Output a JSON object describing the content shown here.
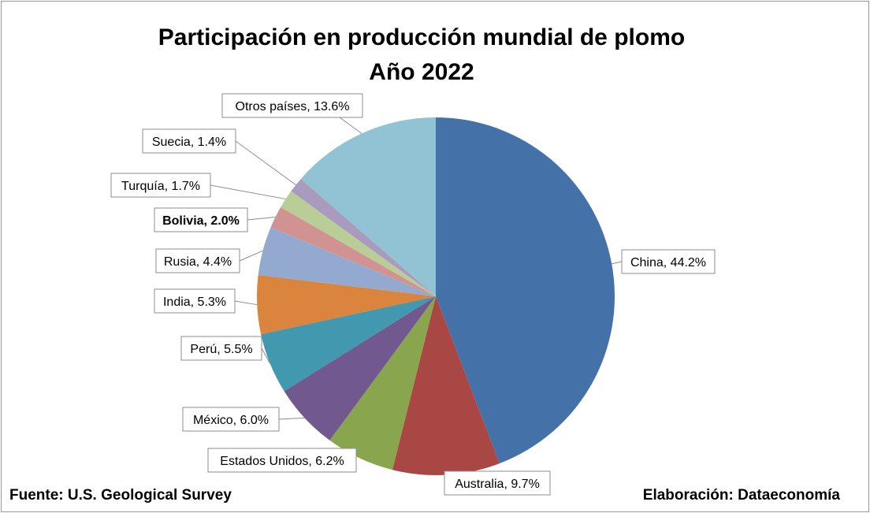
{
  "chart_data": {
    "type": "pie",
    "title": [
      "Participación en producción mundial de plomo",
      "Año 2022"
    ],
    "start_angle_deg": 0,
    "direction": "clockwise",
    "slices": [
      {
        "label": "China, 44.2%",
        "name": "China",
        "value": 44.2,
        "color": "#4472a8",
        "bold": false
      },
      {
        "label": "Australia, 9.7%",
        "name": "Australia",
        "value": 9.7,
        "color": "#a94745",
        "bold": false
      },
      {
        "label": "Estados Unidos, 6.2%",
        "name": "Estados Unidos",
        "value": 6.2,
        "color": "#89a54e",
        "bold": false
      },
      {
        "label": "México, 6.0%",
        "name": "México",
        "value": 6.0,
        "color": "#71588f",
        "bold": false
      },
      {
        "label": "Perú, 5.5%",
        "name": "Perú",
        "value": 5.5,
        "color": "#4198af",
        "bold": false
      },
      {
        "label": "India, 5.3%",
        "name": "India",
        "value": 5.3,
        "color": "#db843d",
        "bold": false
      },
      {
        "label": "Rusia, 4.4%",
        "name": "Rusia",
        "value": 4.4,
        "color": "#93a9cf",
        "bold": false
      },
      {
        "label": "Bolivia, 2.0%",
        "name": "Bolivia",
        "value": 2.0,
        "color": "#d19392",
        "bold": true
      },
      {
        "label": "Turquía, 1.7%",
        "name": "Turquía",
        "value": 1.7,
        "color": "#b9cd96",
        "bold": false
      },
      {
        "label": "Suecia, 1.4%",
        "name": "Suecia",
        "value": 1.4,
        "color": "#a99bbd",
        "bold": false
      },
      {
        "label": "Otros países, 13.6%",
        "name": "Otros países",
        "value": 13.6,
        "color": "#92c3d5",
        "bold": false
      }
    ]
  },
  "footer": {
    "source": "Fuente: U.S. Geological Survey",
    "credit": "Elaboración: Dataeconomía"
  }
}
